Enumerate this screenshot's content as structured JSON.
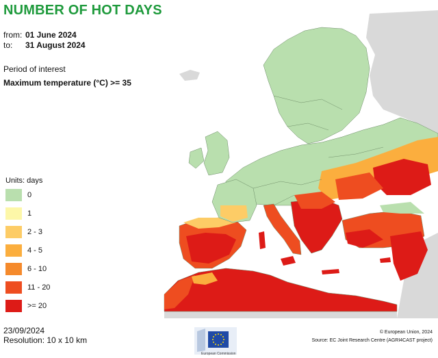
{
  "title": "NUMBER OF HOT DAYS",
  "period": {
    "from_label": "from:",
    "from_value": "01 June 2024",
    "to_label": "to:",
    "to_value": "31 August 2024"
  },
  "period_of_interest_label": "Period of interest",
  "period_of_interest_value": "Maximum temperature (°C) >= 35",
  "legend": {
    "title": "Units: days",
    "items": [
      {
        "label": "0",
        "color": "#b9dfae"
      },
      {
        "label": "1",
        "color": "#fdf7a8"
      },
      {
        "label": "2 - 3",
        "color": "#fdcc66"
      },
      {
        "label": "4 - 5",
        "color": "#fbae3e"
      },
      {
        "label": "6 - 10",
        "color": "#f58a2c"
      },
      {
        "label": "11 - 20",
        "color": "#ee4d20"
      },
      {
        "label": ">= 20",
        "color": "#dd1b17"
      }
    ]
  },
  "date": "23/09/2024",
  "resolution": "Resolution: 10 x 10 km",
  "logo_text": "European Commission",
  "copyright": "© European Union, 2024",
  "source": "Source: EC Joint Research Centre (AGRI4CAST project)",
  "colors": {
    "title_green": "#1e9a3c",
    "outside_land": "#d9d9d9",
    "sea": "#ffffff",
    "eu_blue": "#1f4aa6",
    "eu_star": "#ffdd00"
  }
}
